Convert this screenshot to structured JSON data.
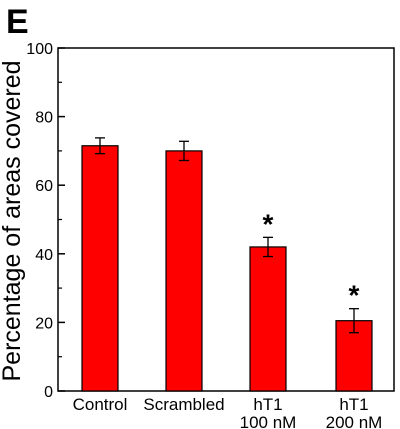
{
  "panel_label": "E",
  "chart_data": {
    "type": "bar",
    "title": "",
    "xlabel": "",
    "ylabel": "Percentage of areas covered",
    "ylim": [
      0,
      100
    ],
    "yticks": [
      0,
      20,
      40,
      60,
      80,
      100
    ],
    "grid": false,
    "categories": [
      [
        "Control"
      ],
      [
        "Scrambled"
      ],
      [
        "hT1",
        "100 nM"
      ],
      [
        "hT1",
        "200 nM"
      ]
    ],
    "values": [
      71.5,
      70.0,
      42.0,
      20.5
    ],
    "errors": [
      2.3,
      2.8,
      2.8,
      3.5
    ],
    "annotations": [
      "",
      "",
      "*",
      "*"
    ],
    "colors": {
      "bar": "#ff0000",
      "bar_stroke": "#000000",
      "axis": "#000000"
    }
  }
}
